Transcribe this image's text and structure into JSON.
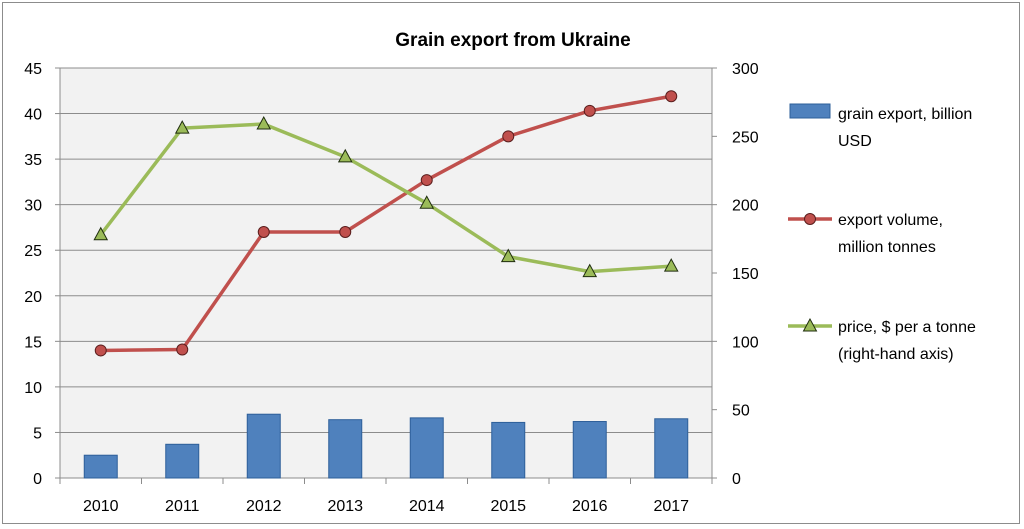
{
  "chart_data": {
    "type": "bar+line",
    "title": "Grain export from Ukraine",
    "categories": [
      "2010",
      "2011",
      "2012",
      "2013",
      "2014",
      "2015",
      "2016",
      "2017"
    ],
    "left_axis": {
      "min": 0,
      "max": 45,
      "step": 5,
      "ticks": [
        "0",
        "5",
        "10",
        "15",
        "20",
        "25",
        "30",
        "35",
        "40",
        "45"
      ]
    },
    "right_axis": {
      "min": 0,
      "max": 300,
      "step": 50,
      "ticks": [
        "0",
        "50",
        "100",
        "150",
        "200",
        "250",
        "300"
      ]
    },
    "grid": true,
    "legend_position": "right",
    "series": [
      {
        "name_lines": [
          "grain export, billion",
          "USD"
        ],
        "kind": "bar",
        "axis": "left",
        "color": "#4f81bd",
        "values": [
          2.5,
          3.7,
          7.0,
          6.4,
          6.6,
          6.1,
          6.2,
          6.5
        ]
      },
      {
        "name_lines": [
          "export volume,",
          "million tonnes"
        ],
        "kind": "line",
        "marker": "circle",
        "axis": "left",
        "color": "#c0504d",
        "values": [
          14.0,
          14.1,
          27.0,
          27.0,
          32.7,
          37.5,
          40.3,
          41.9
        ]
      },
      {
        "name_lines": [
          "price, $ per a tonne",
          "(right-hand axis)"
        ],
        "kind": "line",
        "marker": "triangle",
        "axis": "right",
        "color": "#9bbb59",
        "values": [
          178,
          256,
          259,
          235,
          201,
          162,
          151,
          155
        ]
      }
    ]
  }
}
